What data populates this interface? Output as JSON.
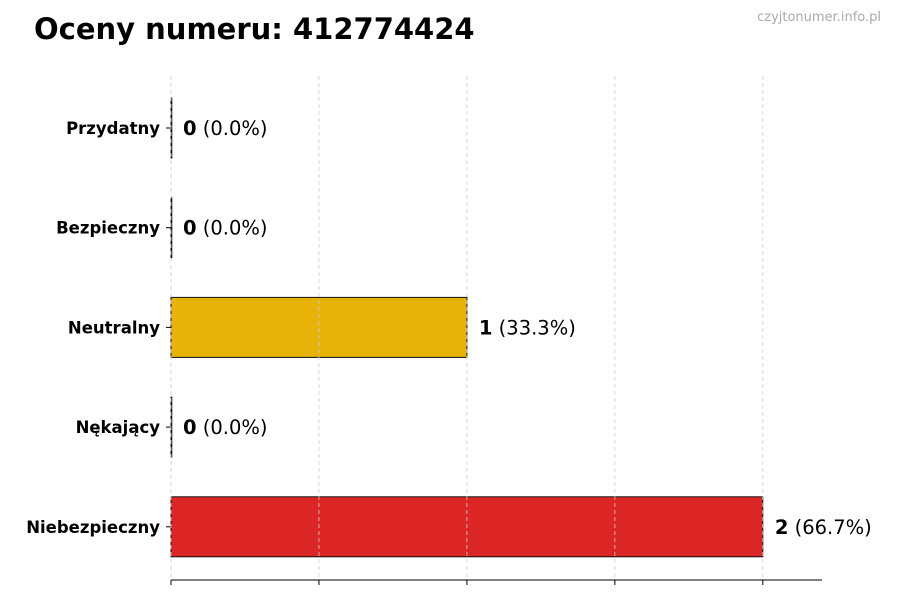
{
  "title": "Oceny numeru: 412774424",
  "watermark": "czyjtonumer.info.pl",
  "chart_data": {
    "type": "bar",
    "orientation": "horizontal",
    "title": "Oceny numeru: 412774424",
    "categories": [
      "Przydatny",
      "Bezpieczny",
      "Neutralny",
      "Nękający",
      "Niebezpieczny"
    ],
    "values": [
      0,
      0,
      1,
      0,
      2
    ],
    "percent_labels": [
      "(0.0%)",
      "(0.0%)",
      "(33.3%)",
      "(0.0%)",
      "(66.7%)"
    ],
    "colors": [
      "#22a33a",
      "#3b82f6",
      "#e8b308",
      "#f07f1a",
      "#dc2626"
    ],
    "xlim": [
      0,
      2.2
    ],
    "x_gridlines": [
      0,
      0.5,
      1,
      1.5,
      2
    ],
    "grid": true,
    "x_tick_labels_shown": false,
    "xlabel": "",
    "ylabel": ""
  }
}
